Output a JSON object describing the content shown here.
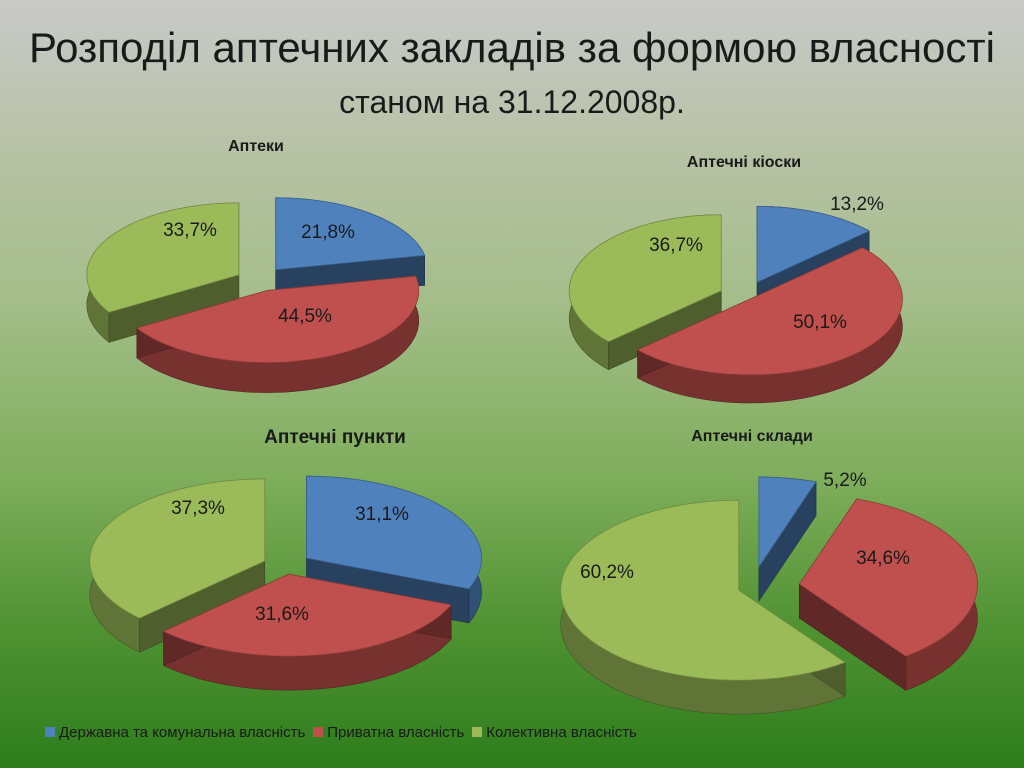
{
  "title": "Розподіл аптечних закладів за формою власності",
  "subtitle": "станом на 31.12.2008р.",
  "colors": {
    "state": "#4f81bd",
    "private": "#c0504d",
    "collective": "#9bbb59"
  },
  "legend": [
    {
      "label": "Державна та комунальна власність",
      "color": "#4f81bd"
    },
    {
      "label": "Приватна власність",
      "color": "#c0504d"
    },
    {
      "label": "Колективна власність",
      "color": "#9bbb59"
    }
  ],
  "chart_data": [
    {
      "type": "pie",
      "title": "Аптеки",
      "categories": [
        "Державна та комунальна власність",
        "Приватна власність",
        "Колективна власність"
      ],
      "values": [
        21.8,
        44.5,
        33.7
      ],
      "labels": [
        "21,8%",
        "44,5%",
        "33,7%"
      ]
    },
    {
      "type": "pie",
      "title": "Аптечні кіоски",
      "categories": [
        "Державна та комунальна власність",
        "Приватна власність",
        "Колективна власність"
      ],
      "values": [
        13.2,
        50.1,
        36.7
      ],
      "labels": [
        "13,2%",
        "50,1%",
        "36,7%"
      ]
    },
    {
      "type": "pie",
      "title": "Аптечні пункти",
      "categories": [
        "Державна та комунальна власність",
        "Приватна власність",
        "Колективна власність"
      ],
      "values": [
        31.1,
        31.6,
        37.3
      ],
      "labels": [
        "31,1%",
        "31,6%",
        "37,3%"
      ]
    },
    {
      "type": "pie",
      "title": "Аптечні склади",
      "categories": [
        "Державна та комунальна власність",
        "Приватна власність",
        "Колективна власність"
      ],
      "values": [
        5.2,
        34.6,
        60.2
      ],
      "labels": [
        "5,2%",
        "34,6%",
        "60,2%"
      ]
    }
  ]
}
